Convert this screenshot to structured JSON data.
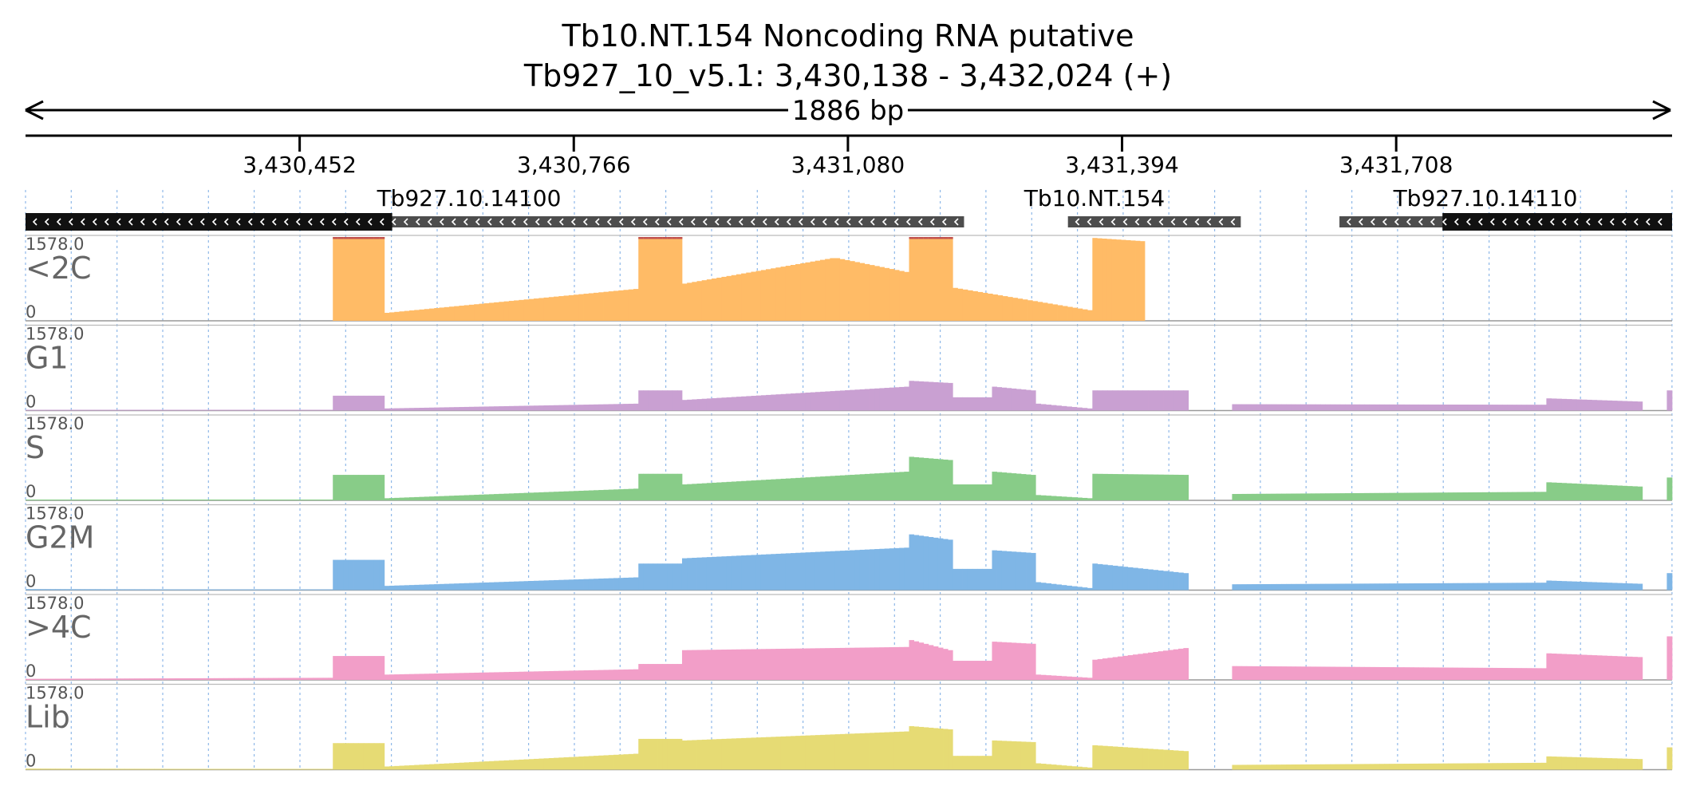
{
  "header": {
    "title_line1": "Tb10.NT.154  Noncoding RNA  putative",
    "title_line2": "Tb927_10_v5.1: 3,430,138 - 3,432,024 (+)",
    "span_label": "1886 bp"
  },
  "axis": {
    "ticks": [
      "3,430,452",
      "3,430,766",
      "3,431,080",
      "3,431,394",
      "3,431,708"
    ],
    "tick_positions_bp": [
      3430452,
      3430766,
      3431080,
      3431394,
      3431708
    ]
  },
  "genes": [
    {
      "label": "Tb927.10.14100",
      "strand": "-",
      "start": 3430138,
      "end": 3431213,
      "cds_end": 3430558
    },
    {
      "label": "Tb10.NT.154",
      "strand": "-",
      "start": 3431332,
      "end": 3431530
    },
    {
      "label": "Tb927.10.14110",
      "strand": "-",
      "start": 3431643,
      "end": 3432024,
      "cds_start": 3431761
    }
  ],
  "chart_data": {
    "type": "bar",
    "region": {
      "chrom": "Tb927_10_v5.1",
      "start": 3430138,
      "end": 3432024,
      "strand": "+"
    },
    "ylim": [
      0,
      1578.0
    ],
    "ymax_label": "1578.0",
    "ymin_label": "0",
    "tracks": [
      {
        "name": "<2C",
        "color": "#ffbb66",
        "clip_color": "#c0504d",
        "segments": [
          {
            "start": 3430490,
            "end": 3430549,
            "values": [
              1578,
              1578
            ]
          },
          {
            "start": 3430549,
            "end": 3430840,
            "values": [
              150,
              600
            ]
          },
          {
            "start": 3430840,
            "end": 3430890,
            "values": [
              1578,
              1578
            ]
          },
          {
            "start": 3430890,
            "end": 3431065,
            "values": [
              700,
              1180
            ]
          },
          {
            "start": 3431065,
            "end": 3431150,
            "values": [
              1180,
              920
            ]
          },
          {
            "start": 3431150,
            "end": 3431200,
            "values": [
              1578,
              1578
            ]
          },
          {
            "start": 3431200,
            "end": 3431360,
            "values": [
              620,
              200
            ]
          },
          {
            "start": 3431360,
            "end": 3431420,
            "values": [
              1560,
              1500
            ]
          }
        ]
      },
      {
        "name": "G1",
        "color": "#c9a0d2",
        "segments": [
          {
            "start": 3430138,
            "end": 3430490,
            "values": [
              15,
              10
            ]
          },
          {
            "start": 3430490,
            "end": 3430549,
            "values": [
              280,
              280
            ]
          },
          {
            "start": 3430549,
            "end": 3430840,
            "values": [
              40,
              130
            ]
          },
          {
            "start": 3430840,
            "end": 3430890,
            "values": [
              380,
              380
            ]
          },
          {
            "start": 3430890,
            "end": 3431150,
            "values": [
              200,
              450
            ]
          },
          {
            "start": 3431150,
            "end": 3431200,
            "values": [
              560,
              520
            ]
          },
          {
            "start": 3431200,
            "end": 3431245,
            "values": [
              250,
              250
            ]
          },
          {
            "start": 3431245,
            "end": 3431295,
            "values": [
              450,
              380
            ]
          },
          {
            "start": 3431295,
            "end": 3431360,
            "values": [
              130,
              40
            ]
          },
          {
            "start": 3431360,
            "end": 3431470,
            "values": [
              380,
              380
            ]
          },
          {
            "start": 3431520,
            "end": 3431880,
            "values": [
              120,
              110
            ]
          },
          {
            "start": 3431880,
            "end": 3431990,
            "values": [
              230,
              170
            ]
          },
          {
            "start": 3432018,
            "end": 3432024,
            "values": [
              380,
              380
            ]
          }
        ]
      },
      {
        "name": "S",
        "color": "#88cc88",
        "segments": [
          {
            "start": 3430138,
            "end": 3430490,
            "values": [
              10,
              10
            ]
          },
          {
            "start": 3430490,
            "end": 3430549,
            "values": [
              480,
              480
            ]
          },
          {
            "start": 3430549,
            "end": 3430840,
            "values": [
              40,
              220
            ]
          },
          {
            "start": 3430840,
            "end": 3430890,
            "values": [
              500,
              500
            ]
          },
          {
            "start": 3430890,
            "end": 3431150,
            "values": [
              300,
              540
            ]
          },
          {
            "start": 3431150,
            "end": 3431200,
            "values": [
              820,
              760
            ]
          },
          {
            "start": 3431200,
            "end": 3431245,
            "values": [
              300,
              300
            ]
          },
          {
            "start": 3431245,
            "end": 3431295,
            "values": [
              540,
              480
            ]
          },
          {
            "start": 3431295,
            "end": 3431360,
            "values": [
              100,
              40
            ]
          },
          {
            "start": 3431360,
            "end": 3431470,
            "values": [
              500,
              480
            ]
          },
          {
            "start": 3431520,
            "end": 3431880,
            "values": [
              120,
              160
            ]
          },
          {
            "start": 3431880,
            "end": 3431990,
            "values": [
              340,
              260
            ]
          },
          {
            "start": 3432018,
            "end": 3432024,
            "values": [
              430,
              430
            ]
          }
        ]
      },
      {
        "name": "G2M",
        "color": "#7fb6e6",
        "segments": [
          {
            "start": 3430138,
            "end": 3430490,
            "values": [
              20,
              10
            ]
          },
          {
            "start": 3430490,
            "end": 3430549,
            "values": [
              570,
              570
            ]
          },
          {
            "start": 3430549,
            "end": 3430840,
            "values": [
              80,
              240
            ]
          },
          {
            "start": 3430840,
            "end": 3430890,
            "values": [
              500,
              500
            ]
          },
          {
            "start": 3430890,
            "end": 3431150,
            "values": [
              600,
              800
            ]
          },
          {
            "start": 3431150,
            "end": 3431200,
            "values": [
              1050,
              950
            ]
          },
          {
            "start": 3431200,
            "end": 3431245,
            "values": [
              400,
              400
            ]
          },
          {
            "start": 3431245,
            "end": 3431295,
            "values": [
              750,
              700
            ]
          },
          {
            "start": 3431295,
            "end": 3431360,
            "values": [
              150,
              40
            ]
          },
          {
            "start": 3431360,
            "end": 3431470,
            "values": [
              500,
              320
            ]
          },
          {
            "start": 3431520,
            "end": 3431880,
            "values": [
              110,
              140
            ]
          },
          {
            "start": 3431880,
            "end": 3431990,
            "values": [
              180,
              120
            ]
          },
          {
            "start": 3432018,
            "end": 3432024,
            "values": [
              320,
              320
            ]
          }
        ]
      },
      {
        "name": ">4C",
        "color": "#f29ec8",
        "segments": [
          {
            "start": 3430138,
            "end": 3430490,
            "values": [
              20,
              40
            ]
          },
          {
            "start": 3430490,
            "end": 3430549,
            "values": [
              450,
              450
            ]
          },
          {
            "start": 3430549,
            "end": 3430840,
            "values": [
              100,
              200
            ]
          },
          {
            "start": 3430840,
            "end": 3430890,
            "values": [
              300,
              300
            ]
          },
          {
            "start": 3430890,
            "end": 3431150,
            "values": [
              560,
              620
            ]
          },
          {
            "start": 3431150,
            "end": 3431200,
            "values": [
              750,
              560
            ]
          },
          {
            "start": 3431200,
            "end": 3431245,
            "values": [
              360,
              360
            ]
          },
          {
            "start": 3431245,
            "end": 3431295,
            "values": [
              720,
              680
            ]
          },
          {
            "start": 3431295,
            "end": 3431360,
            "values": [
              100,
              40
            ]
          },
          {
            "start": 3431360,
            "end": 3431470,
            "values": [
              380,
              600
            ]
          },
          {
            "start": 3431520,
            "end": 3431880,
            "values": [
              260,
              220
            ]
          },
          {
            "start": 3431880,
            "end": 3431990,
            "values": [
              500,
              430
            ]
          },
          {
            "start": 3432018,
            "end": 3432024,
            "values": [
              820,
              820
            ]
          }
        ]
      },
      {
        "name": "Lib",
        "color": "#e6db74",
        "segments": [
          {
            "start": 3430138,
            "end": 3430490,
            "values": [
              20,
              10
            ]
          },
          {
            "start": 3430490,
            "end": 3430549,
            "values": [
              500,
              500
            ]
          },
          {
            "start": 3430549,
            "end": 3430840,
            "values": [
              60,
              300
            ]
          },
          {
            "start": 3430840,
            "end": 3430890,
            "values": [
              580,
              580
            ]
          },
          {
            "start": 3430890,
            "end": 3431150,
            "values": [
              550,
              720
            ]
          },
          {
            "start": 3431150,
            "end": 3431200,
            "values": [
              820,
              760
            ]
          },
          {
            "start": 3431200,
            "end": 3431245,
            "values": [
              260,
              260
            ]
          },
          {
            "start": 3431245,
            "end": 3431295,
            "values": [
              550,
              520
            ]
          },
          {
            "start": 3431295,
            "end": 3431360,
            "values": [
              120,
              40
            ]
          },
          {
            "start": 3431360,
            "end": 3431470,
            "values": [
              460,
              350
            ]
          },
          {
            "start": 3431520,
            "end": 3431880,
            "values": [
              90,
              130
            ]
          },
          {
            "start": 3431880,
            "end": 3431990,
            "values": [
              250,
              200
            ]
          },
          {
            "start": 3432018,
            "end": 3432024,
            "values": [
              420,
              420
            ]
          }
        ]
      }
    ]
  }
}
